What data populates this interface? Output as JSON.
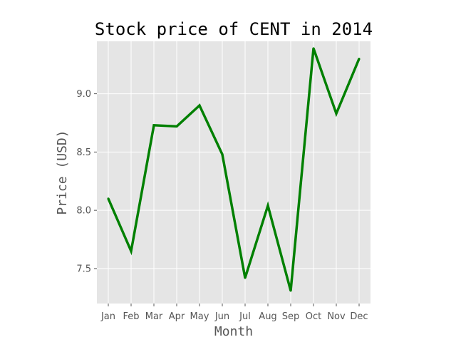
{
  "chart_data": {
    "type": "line",
    "title": "Stock price of CENT in 2014",
    "xlabel": "Month",
    "ylabel": "Price (USD)",
    "categories": [
      "Jan",
      "Feb",
      "Mar",
      "Apr",
      "May",
      "Jun",
      "Jul",
      "Aug",
      "Sep",
      "Oct",
      "Nov",
      "Dec"
    ],
    "yticks": [
      "7.5",
      "8.0",
      "8.5",
      "9.0"
    ],
    "ylim": [
      7.2,
      9.45
    ],
    "grid": true,
    "series": [
      {
        "values": [
          8.1,
          7.65,
          8.73,
          8.72,
          8.9,
          8.48,
          7.42,
          8.04,
          7.31,
          9.39,
          8.83,
          9.3
        ],
        "color": "#008000"
      }
    ],
    "background_color": "#e5e5e5",
    "grid_color": "#ffffff"
  }
}
